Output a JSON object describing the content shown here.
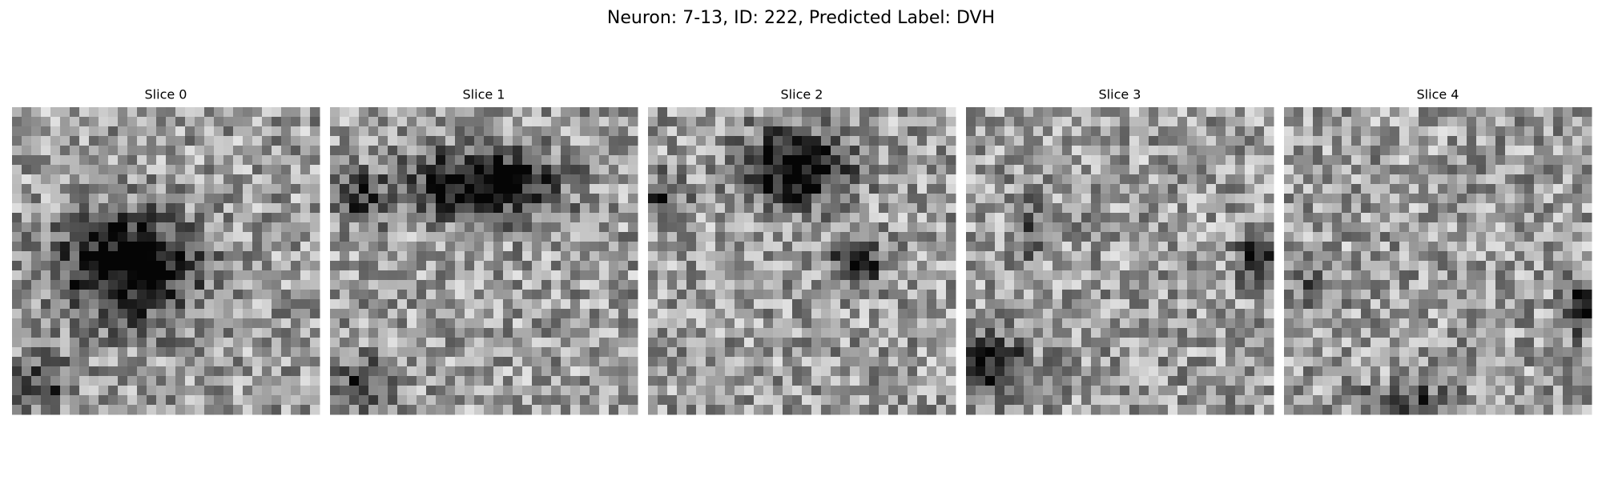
{
  "title": "Neuron: 7-13, ID: 222, Predicted Label: DVH",
  "panels": [
    {
      "title": "Slice 0"
    },
    {
      "title": "Slice 1"
    },
    {
      "title": "Slice 2"
    },
    {
      "title": "Slice 3"
    },
    {
      "title": "Slice 4"
    }
  ]
}
